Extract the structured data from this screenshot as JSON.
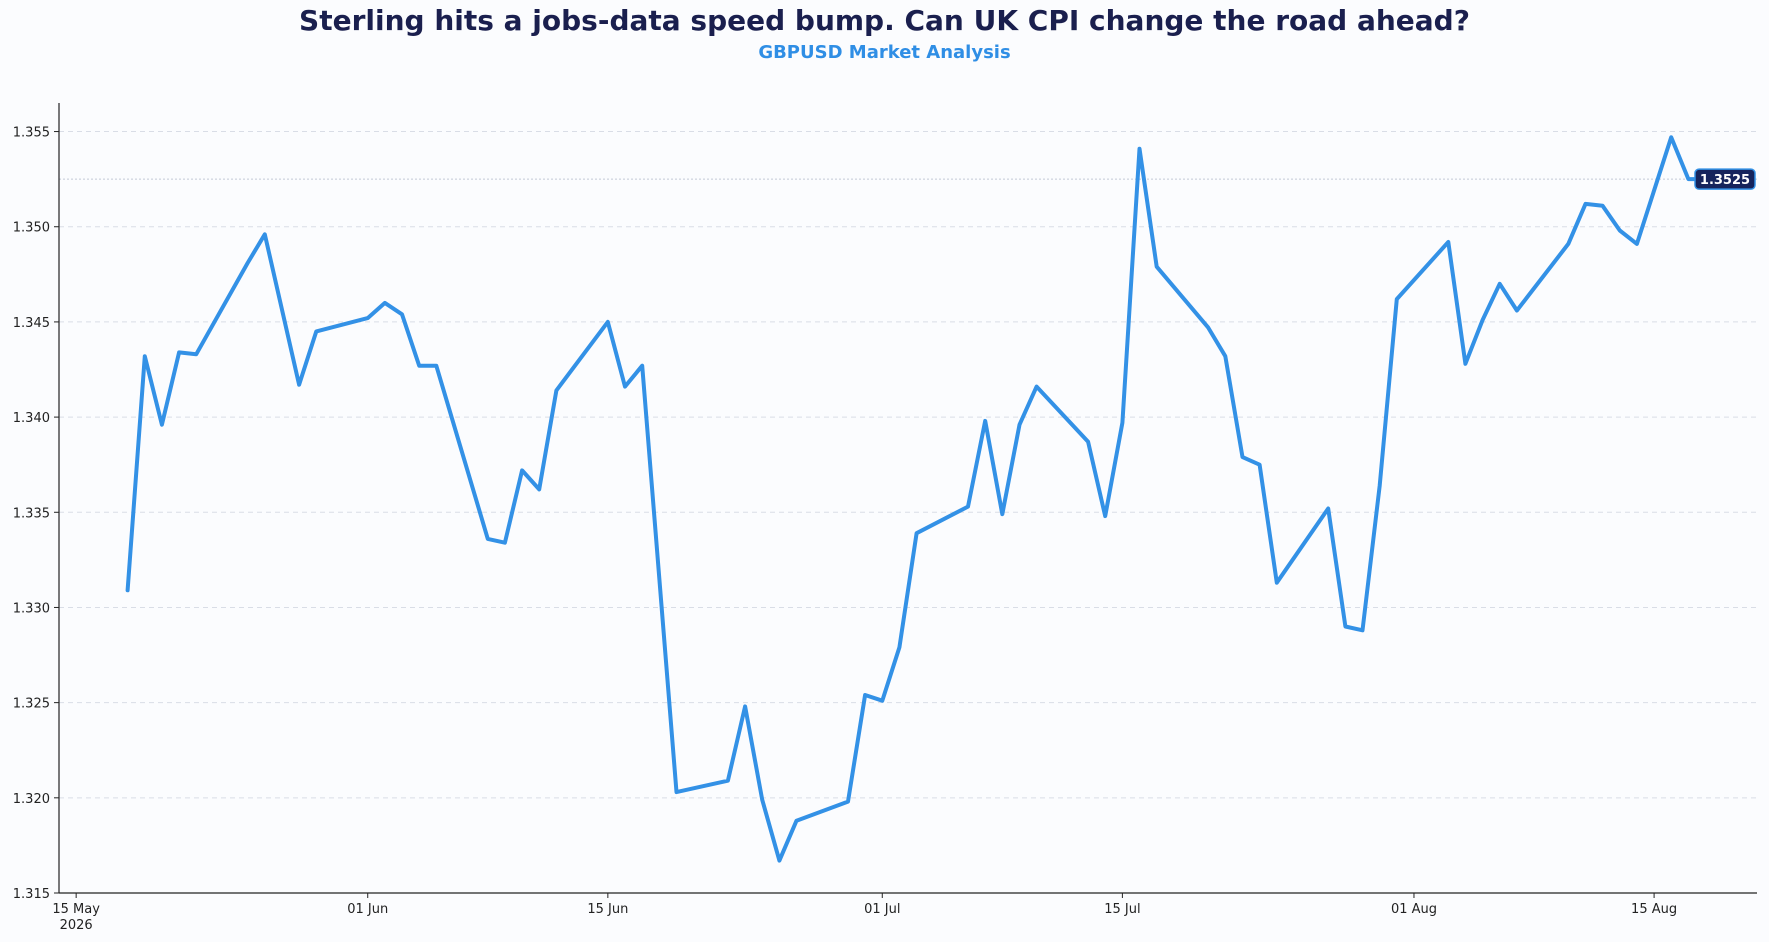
{
  "header": {
    "title": "Sterling hits a jobs-data speed bump. Can UK CPI change the road ahead?",
    "subtitle": "GBPUSD Market Analysis"
  },
  "colors": {
    "title": "#1a1f4e",
    "subtitle": "#2f8ee5",
    "line": "#3391e6",
    "badge_bg": "#16245c",
    "badge_border": "#3391e6",
    "badge_text": "#ffffff",
    "grid": "#d9dde6",
    "background": "#fbfcfe"
  },
  "chart_data": {
    "type": "line",
    "title": "Sterling hits a jobs-data speed bump. Can UK CPI change the road ahead?",
    "subtitle": "GBPUSD Market Analysis",
    "xlabel": "",
    "ylabel": "",
    "xlim": [
      "2026-05-14",
      "2026-08-21"
    ],
    "ylim": [
      1.315,
      1.3565
    ],
    "grid": "horizontal dashed",
    "x_ticks": [
      {
        "date": "2026-05-15",
        "label": "15 May",
        "sublabel": "2026"
      },
      {
        "date": "2026-06-01",
        "label": "01 Jun",
        "sublabel": ""
      },
      {
        "date": "2026-06-15",
        "label": "15 Jun",
        "sublabel": ""
      },
      {
        "date": "2026-07-01",
        "label": "01 Jul",
        "sublabel": ""
      },
      {
        "date": "2026-07-15",
        "label": "15 Jul",
        "sublabel": ""
      },
      {
        "date": "2026-08-01",
        "label": "01 Aug",
        "sublabel": ""
      },
      {
        "date": "2026-08-15",
        "label": "15 Aug",
        "sublabel": ""
      }
    ],
    "y_ticks": [
      "1.315",
      "1.320",
      "1.325",
      "1.330",
      "1.335",
      "1.340",
      "1.345",
      "1.350",
      "1.355"
    ],
    "last_value_label": "1.3525",
    "last_value": 1.3525,
    "series": [
      {
        "x": [
          "2026-05-18",
          "2026-05-19",
          "2026-05-20",
          "2026-05-21",
          "2026-05-22",
          "2026-05-25",
          "2026-05-26",
          "2026-05-28",
          "2026-05-29",
          "2026-06-01",
          "2026-06-02",
          "2026-06-03",
          "2026-06-04",
          "2026-06-05",
          "2026-06-08",
          "2026-06-09",
          "2026-06-10",
          "2026-06-11",
          "2026-06-12",
          "2026-06-15",
          "2026-06-16",
          "2026-06-17",
          "2026-06-19",
          "2026-06-22",
          "2026-06-23",
          "2026-06-24",
          "2026-06-25",
          "2026-06-26",
          "2026-06-29",
          "2026-06-30",
          "2026-07-01",
          "2026-07-02",
          "2026-07-03",
          "2026-07-06",
          "2026-07-07",
          "2026-07-08",
          "2026-07-09",
          "2026-07-10",
          "2026-07-13",
          "2026-07-14",
          "2026-07-15",
          "2026-07-16",
          "2026-07-17",
          "2026-07-20",
          "2026-07-21",
          "2026-07-22",
          "2026-07-23",
          "2026-07-24",
          "2026-07-27",
          "2026-07-28",
          "2026-07-29",
          "2026-07-30",
          "2026-07-31",
          "2026-08-03",
          "2026-08-04",
          "2026-08-05",
          "2026-08-06",
          "2026-08-07",
          "2026-08-10",
          "2026-08-11",
          "2026-08-12",
          "2026-08-13",
          "2026-08-14",
          "2026-08-16",
          "2026-08-17",
          "2026-08-18"
        ],
        "values": [
          1.3309,
          1.3432,
          1.3396,
          1.3434,
          1.3433,
          1.3481,
          1.3496,
          1.3417,
          1.3445,
          1.3452,
          1.346,
          1.3454,
          1.3427,
          1.3427,
          1.3336,
          1.3334,
          1.3372,
          1.3362,
          1.3414,
          1.345,
          1.3416,
          1.3427,
          1.3203,
          1.3209,
          1.3248,
          1.3199,
          1.3167,
          1.3188,
          1.3198,
          1.3254,
          1.3251,
          1.3279,
          1.3339,
          1.3353,
          1.3398,
          1.3349,
          1.3396,
          1.3416,
          1.3387,
          1.3348,
          1.3397,
          1.3541,
          1.3479,
          1.3447,
          1.3432,
          1.3379,
          1.3375,
          1.3313,
          1.3352,
          1.329,
          1.3288,
          1.3364,
          1.3462,
          1.3492,
          1.3428,
          1.3451,
          1.347,
          1.3456,
          1.3491,
          1.3512,
          1.3511,
          1.3498,
          1.3491,
          1.3547,
          1.3525,
          1.3525
        ]
      }
    ]
  }
}
